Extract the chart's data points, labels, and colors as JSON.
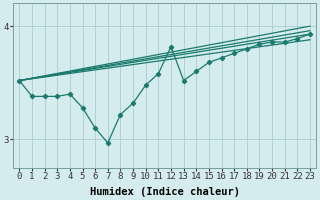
{
  "xlabel": "Humidex (Indice chaleur)",
  "background_color": "#d4ecee",
  "grid_color": "#aacdd2",
  "line_color": "#1a7a6e",
  "xlim": [
    -0.5,
    23.5
  ],
  "ylim": [
    2.75,
    4.2
  ],
  "yticks": [
    3,
    4
  ],
  "xticks": [
    0,
    1,
    2,
    3,
    4,
    5,
    6,
    7,
    8,
    9,
    10,
    11,
    12,
    13,
    14,
    15,
    16,
    17,
    18,
    19,
    20,
    21,
    22,
    23
  ],
  "linear_series": [
    {
      "x0": 0,
      "y0": 3.52,
      "x1": 23,
      "y1": 3.93
    },
    {
      "x0": 0,
      "y0": 3.52,
      "x1": 23,
      "y1": 3.96
    },
    {
      "x0": 0,
      "y0": 3.52,
      "x1": 23,
      "y1": 4.0
    },
    {
      "x0": 0,
      "y0": 3.52,
      "x1": 23,
      "y1": 3.88
    }
  ],
  "jagged_x": [
    0,
    1,
    2,
    3,
    4,
    5,
    6,
    7,
    8,
    9,
    10,
    11,
    12,
    13,
    14,
    15,
    16,
    17,
    18,
    19,
    20,
    21,
    22,
    23
  ],
  "jagged_y": [
    3.52,
    3.38,
    3.38,
    3.38,
    3.4,
    3.28,
    3.1,
    2.97,
    3.22,
    3.32,
    3.48,
    3.58,
    3.82,
    3.52,
    3.6,
    3.68,
    3.72,
    3.76,
    3.8,
    3.84,
    3.86,
    3.86,
    3.89,
    3.93
  ],
  "tick_fontsize": 6.5,
  "axis_fontsize": 7.5
}
